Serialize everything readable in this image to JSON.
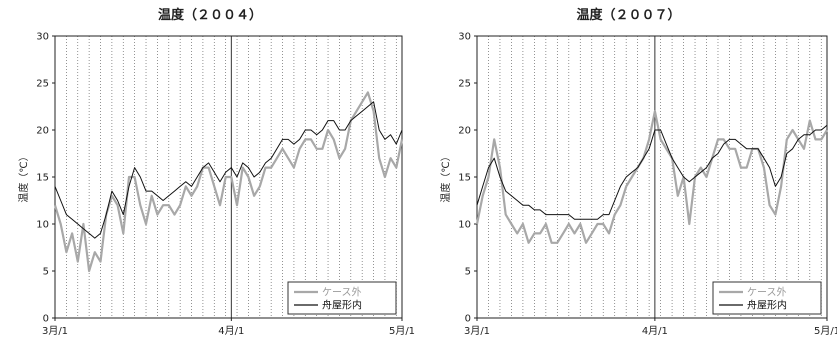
{
  "chart_data": [
    {
      "type": "line",
      "title": "温度（２００４）",
      "ylabel": "温度（℃）",
      "ylim": [
        0,
        30
      ],
      "yticks": [
        "0",
        "5",
        "10",
        "15",
        "20",
        "25",
        "30"
      ],
      "xticks": [
        "3月/1",
        "4月/1",
        "5月/1"
      ],
      "xlim_days": [
        0,
        61
      ],
      "grid": "vertical dotted lines every 2 days; solid line at 4月/1",
      "legend_position": "bottom-right",
      "colors": {
        "outside": "#a8a8a8",
        "inside": "#111111"
      },
      "series": [
        {
          "name": "ケース外",
          "x": [
            0,
            1,
            2,
            3,
            4,
            5,
            6,
            7,
            8,
            9,
            10,
            11,
            12,
            13,
            14,
            15,
            16,
            17,
            18,
            19,
            20,
            21,
            22,
            23,
            24,
            25,
            26,
            27,
            28,
            29,
            30,
            31,
            32,
            33,
            34,
            35,
            36,
            37,
            38,
            39,
            40,
            41,
            42,
            43,
            44,
            45,
            46,
            47,
            48,
            49,
            50,
            51,
            52,
            53,
            54,
            55,
            56,
            57,
            58,
            59,
            60,
            61
          ],
          "values": [
            12,
            10,
            7,
            9,
            6,
            10,
            5,
            7,
            6,
            11,
            13,
            12,
            9,
            15,
            15,
            12,
            10,
            13,
            11,
            12,
            12,
            11,
            12,
            14,
            13,
            14,
            16,
            16,
            14,
            12,
            15,
            15,
            12,
            16,
            15,
            13,
            14,
            16,
            16,
            17,
            18,
            17,
            16,
            18,
            19,
            19,
            18,
            18,
            20,
            19,
            17,
            18,
            21,
            22,
            23,
            24,
            22,
            17,
            15,
            17,
            16,
            19
          ]
        },
        {
          "name": "舟屋形内",
          "x": [
            0,
            1,
            2,
            3,
            4,
            5,
            6,
            7,
            8,
            9,
            10,
            11,
            12,
            13,
            14,
            15,
            16,
            17,
            18,
            19,
            20,
            21,
            22,
            23,
            24,
            25,
            26,
            27,
            28,
            29,
            30,
            31,
            32,
            33,
            34,
            35,
            36,
            37,
            38,
            39,
            40,
            41,
            42,
            43,
            44,
            45,
            46,
            47,
            48,
            49,
            50,
            51,
            52,
            53,
            54,
            55,
            56,
            57,
            58,
            59,
            60,
            61
          ],
          "values": [
            14,
            12.5,
            11,
            10.5,
            10,
            9.5,
            9,
            8.5,
            9,
            11,
            13.5,
            12.5,
            11,
            14,
            16,
            15,
            13.5,
            13.5,
            13,
            12.5,
            13,
            13.5,
            14,
            14.5,
            14,
            15,
            16,
            16.5,
            15.5,
            14.5,
            15.5,
            16,
            15,
            16.5,
            16,
            15,
            15.5,
            16.5,
            17,
            18,
            19,
            19,
            18.5,
            19,
            20,
            20,
            19.5,
            20,
            21,
            21,
            20,
            20,
            21,
            21.5,
            22,
            22.5,
            23,
            20,
            19,
            19.5,
            18.5,
            20
          ]
        }
      ]
    },
    {
      "type": "line",
      "title": "温度（２００７）",
      "ylabel": "温度（℃）",
      "ylim": [
        0,
        30
      ],
      "yticks": [
        "0",
        "5",
        "10",
        "15",
        "20",
        "25",
        "30"
      ],
      "xticks": [
        "3月/1",
        "4月/1",
        "5月/1"
      ],
      "xlim_days": [
        0,
        61
      ],
      "grid": "vertical dotted lines every 2 days; solid line at 4月/1",
      "legend_position": "bottom-right",
      "colors": {
        "outside": "#a8a8a8",
        "inside": "#111111"
      },
      "series": [
        {
          "name": "ケース外",
          "x": [
            0,
            1,
            2,
            3,
            4,
            5,
            6,
            7,
            8,
            9,
            10,
            11,
            12,
            13,
            14,
            15,
            16,
            17,
            18,
            19,
            20,
            21,
            22,
            23,
            24,
            25,
            26,
            27,
            28,
            29,
            30,
            31,
            32,
            33,
            34,
            35,
            36,
            37,
            38,
            39,
            40,
            41,
            42,
            43,
            44,
            45,
            46,
            47,
            48,
            49,
            50,
            51,
            52,
            53,
            54,
            55,
            56,
            57,
            58,
            59,
            60,
            61
          ],
          "values": [
            10,
            13,
            15,
            19,
            16,
            11,
            10,
            9,
            10,
            8,
            9,
            9,
            10,
            8,
            8,
            9,
            10,
            9,
            10,
            8,
            9,
            10,
            10,
            9,
            11,
            12,
            14,
            15,
            16,
            17,
            19,
            22,
            19,
            18,
            17,
            13,
            15,
            10,
            15,
            16,
            15,
            17,
            19,
            19,
            18,
            18,
            16,
            16,
            18,
            18,
            16,
            12,
            11,
            14,
            19,
            20,
            19,
            18,
            21,
            19,
            19,
            20
          ]
        },
        {
          "name": "舟屋形内",
          "x": [
            0,
            1,
            2,
            3,
            4,
            5,
            6,
            7,
            8,
            9,
            10,
            11,
            12,
            13,
            14,
            15,
            16,
            17,
            18,
            19,
            20,
            21,
            22,
            23,
            24,
            25,
            26,
            27,
            28,
            29,
            30,
            31,
            32,
            33,
            34,
            35,
            36,
            37,
            38,
            39,
            40,
            41,
            42,
            43,
            44,
            45,
            46,
            47,
            48,
            49,
            50,
            51,
            52,
            53,
            54,
            55,
            56,
            57,
            58,
            59,
            60,
            61
          ],
          "values": [
            12,
            14,
            16,
            17,
            15,
            13.5,
            13,
            12.5,
            12,
            12,
            11.5,
            11.5,
            11,
            11,
            11,
            11,
            11,
            10.5,
            10.5,
            10.5,
            10.5,
            10.5,
            11,
            11,
            12.5,
            14,
            15,
            15.5,
            16,
            17,
            18,
            20,
            20,
            18.5,
            17,
            16,
            15,
            14.5,
            15,
            15.5,
            16,
            17,
            17.5,
            18.5,
            19,
            19,
            18.5,
            18,
            18,
            18,
            17,
            16,
            14,
            15,
            17.5,
            18,
            19,
            19.5,
            19.5,
            20,
            20,
            20.5
          ]
        }
      ]
    }
  ]
}
